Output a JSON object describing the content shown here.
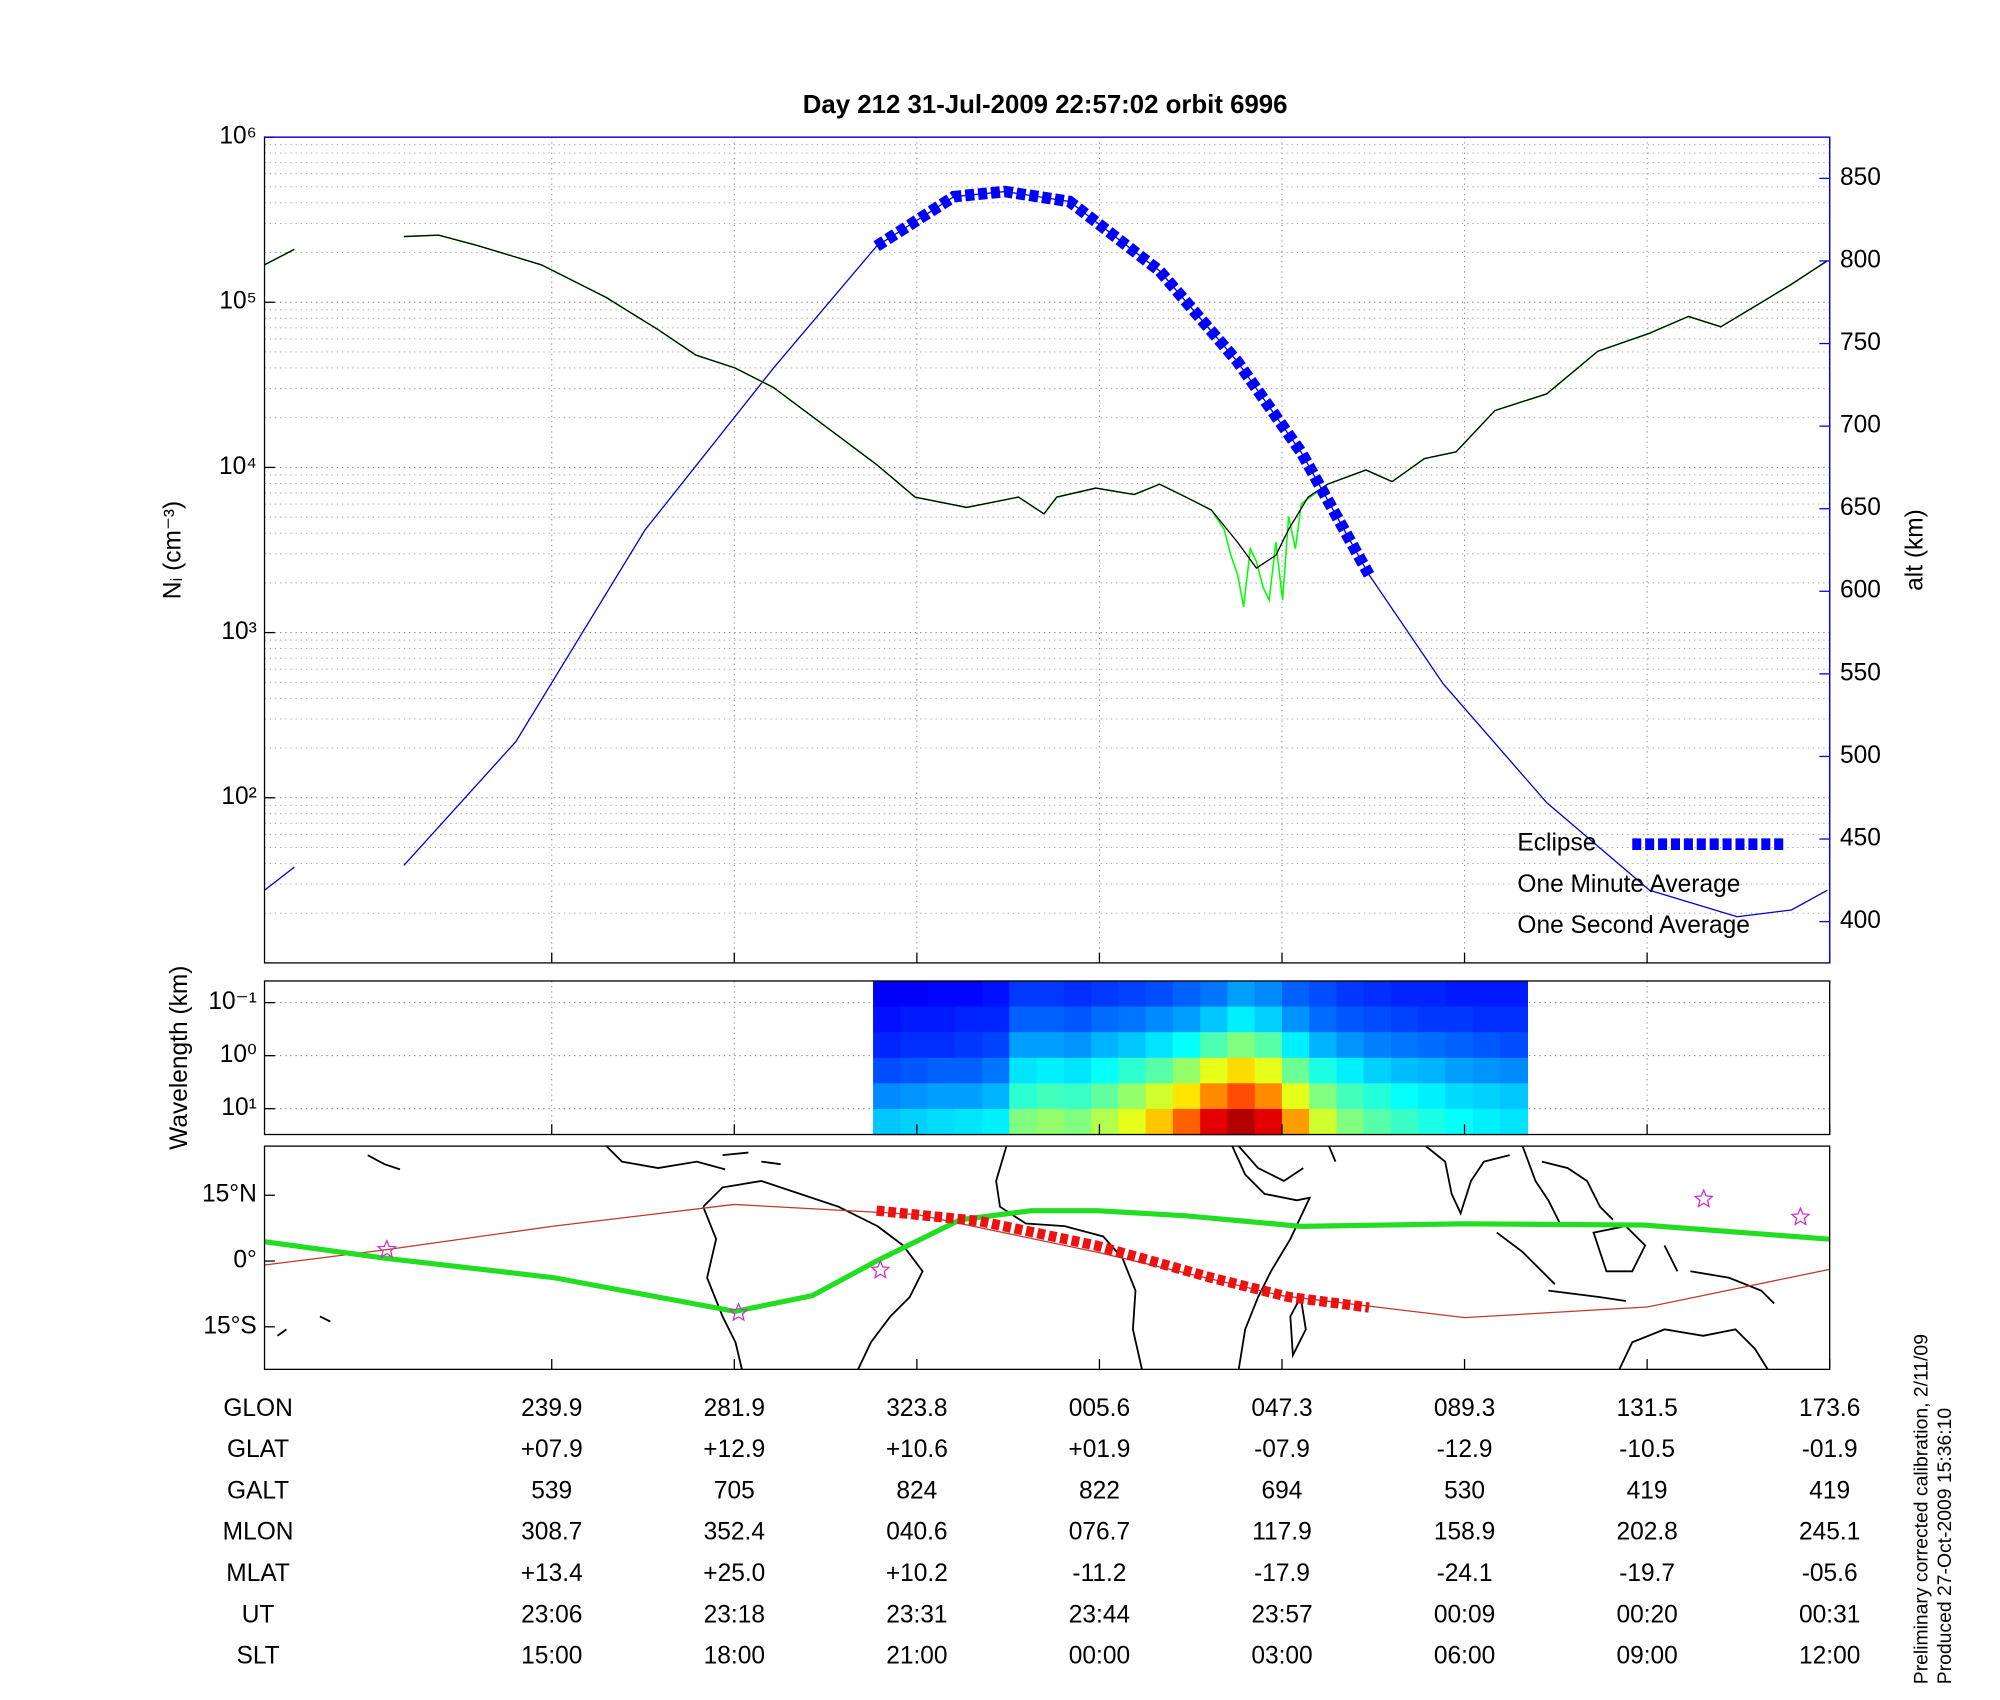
{
  "title": "Day 212  31-Jul-2009 22:57:02   orbit 6996",
  "chart_data": [
    {
      "type": "line",
      "ylabel": "Nᵢ (cm⁻³)",
      "ylog": true,
      "ylim": [
        10,
        1000000
      ],
      "yticks": [
        {
          "value": 100,
          "label": "10²"
        },
        {
          "value": 1000,
          "label": "10³"
        },
        {
          "value": 10000,
          "label": "10⁴"
        },
        {
          "value": 100000,
          "label": "10⁵"
        },
        {
          "value": 1000000,
          "label": "10⁶"
        }
      ],
      "yminor": [
        20,
        30,
        40,
        50,
        60,
        70,
        80,
        90,
        200,
        300,
        400,
        500,
        600,
        700,
        800,
        900,
        2000,
        3000,
        4000,
        5000,
        6000,
        7000,
        8000,
        9000,
        20000,
        30000,
        40000,
        50000,
        60000,
        70000,
        80000,
        90000,
        200000,
        300000,
        400000,
        500000,
        600000,
        700000,
        800000,
        900000
      ],
      "y2label": "alt (km)",
      "y2lim": [
        375,
        875
      ],
      "y2ticks": [
        400,
        450,
        500,
        550,
        600,
        650,
        700,
        750,
        800,
        850
      ],
      "y2color": "#0000ff",
      "grid": true,
      "legend": "lower right",
      "series": [
        {
          "name": "Eclipse",
          "axis": "y2",
          "color": "#0000ff",
          "width": 9,
          "dash": "7 3",
          "x": [
            20.34,
            21.61,
            22.45,
            23.51,
            24.99,
            26.27,
            27.32,
            28.43
          ],
          "values": [
            809,
            839,
            842,
            836,
            794,
            739,
            684,
            610
          ]
        },
        {
          "name": "One Minute Average",
          "color": "#000000",
          "width": 1,
          "x": [
            10.28,
            10.77,
            11.66,
            12.57,
            13.14,
            13.77,
            14.83,
            15.89,
            16.74,
            17.37,
            18.01,
            18.64,
            19.49,
            20.34,
            20.97,
            21.82,
            22.67,
            23.09,
            23.3,
            23.94,
            24.57,
            24.99,
            25.42,
            25.84,
            26.27,
            26.58,
            26.9,
            27.11,
            27.43,
            27.75,
            28.38,
            28.81,
            29.34,
            29.86,
            30.5,
            31.35,
            32.19,
            33.04,
            33.68,
            34.21,
            34.74,
            35.37,
            35.96
          ],
          "values": [
            168500,
            209000,
            null,
            250000,
            255000,
            221000,
            168500,
            107000,
            68500,
            47800,
            40000,
            30500,
            17800,
            10400,
            6610,
            5730,
            6610,
            5230,
            6610,
            7500,
            6850,
            7910,
            6610,
            5520,
            3520,
            2460,
            2940,
            4220,
            6610,
            7910,
            9650,
            8200,
            11300,
            12400,
            22100,
            27900,
            50500,
            64900,
            82000,
            71100,
            93000,
            128500,
            178000
          ]
        },
        {
          "name": "One Second Average",
          "color": "#00ff00",
          "width": 1.2,
          "x": [
            10.28,
            10.77,
            11.66,
            12.57,
            13.14,
            13.77,
            14.83,
            15.89,
            16.74,
            17.37,
            18.01,
            18.64,
            19.49,
            20.34,
            20.97,
            21.82,
            22.67,
            23.09,
            23.3,
            23.94,
            24.57,
            24.99,
            25.42,
            25.84,
            26.05,
            26.16,
            26.27,
            26.37,
            26.48,
            26.58,
            26.69,
            26.79,
            26.9,
            27.01,
            27.11,
            27.22,
            27.32,
            27.75,
            28.38,
            28.81,
            29.34,
            29.86,
            30.5,
            31.35,
            32.19,
            33.04,
            33.68,
            34.21,
            34.74,
            35.37,
            35.96
          ],
          "values": [
            168500,
            209000,
            null,
            250000,
            255000,
            221000,
            168500,
            107000,
            68500,
            47800,
            40000,
            30500,
            17800,
            10400,
            6610,
            5730,
            6610,
            5230,
            6610,
            7500,
            6850,
            7910,
            6610,
            5520,
            4220,
            2940,
            2250,
            1430,
            3220,
            2690,
            1880,
            1570,
            3520,
            1570,
            5050,
            3220,
            6040,
            7910,
            9650,
            8200,
            11300,
            12400,
            22100,
            27900,
            50500,
            64900,
            82000,
            71100,
            93000,
            128500,
            178000
          ]
        },
        {
          "axis": "y2",
          "color": "#0000cd",
          "width": 1,
          "x": [
            10.28,
            10.77,
            11.66,
            12.57,
            14.41,
            16.53,
            18.64,
            20.34,
            21.61,
            22.45,
            23.51,
            24.99,
            26.27,
            27.32,
            28.43,
            29.65,
            31.35,
            33.04,
            34.48,
            35.37,
            35.96
          ],
          "values": [
            419,
            433,
            null,
            434,
            509,
            637,
            735,
            809,
            839,
            842,
            836,
            794,
            739,
            684,
            610,
            544,
            472,
            419,
            403,
            407,
            419
          ]
        }
      ]
    },
    {
      "type": "heatmap",
      "ylabel": "Wavelength (km)",
      "ylog": true,
      "yreverse": true,
      "ylim": [
        0.039,
        30.7
      ],
      "yticks": [
        {
          "value": 0.1,
          "label": "10⁻¹"
        },
        {
          "value": 1,
          "label": "10⁰"
        },
        {
          "value": 10,
          "label": "10¹"
        }
      ],
      "grid": true,
      "colormap": "jet",
      "x_range": [
        20.28,
        31.03
      ],
      "z": [
        [
          0.12,
          0.12,
          0.13,
          0.13,
          0.14,
          0.18,
          0.18,
          0.17,
          0.18,
          0.19,
          0.2,
          0.22,
          0.24,
          0.28,
          0.26,
          0.22,
          0.2,
          0.18,
          0.17,
          0.16,
          0.16,
          0.15,
          0.15,
          0.15
        ],
        [
          0.14,
          0.15,
          0.15,
          0.16,
          0.16,
          0.22,
          0.22,
          0.21,
          0.23,
          0.24,
          0.26,
          0.28,
          0.32,
          0.36,
          0.33,
          0.27,
          0.23,
          0.21,
          0.2,
          0.19,
          0.18,
          0.18,
          0.17,
          0.17
        ],
        [
          0.16,
          0.17,
          0.17,
          0.18,
          0.19,
          0.28,
          0.28,
          0.27,
          0.3,
          0.32,
          0.35,
          0.38,
          0.45,
          0.5,
          0.46,
          0.36,
          0.3,
          0.27,
          0.25,
          0.24,
          0.23,
          0.22,
          0.21,
          0.2
        ],
        [
          0.2,
          0.21,
          0.22,
          0.22,
          0.24,
          0.35,
          0.36,
          0.35,
          0.38,
          0.42,
          0.46,
          0.52,
          0.6,
          0.66,
          0.6,
          0.48,
          0.4,
          0.36,
          0.33,
          0.31,
          0.3,
          0.28,
          0.27,
          0.26
        ],
        [
          0.26,
          0.27,
          0.28,
          0.28,
          0.3,
          0.42,
          0.44,
          0.43,
          0.47,
          0.52,
          0.58,
          0.65,
          0.74,
          0.8,
          0.74,
          0.6,
          0.5,
          0.44,
          0.41,
          0.38,
          0.36,
          0.34,
          0.33,
          0.32
        ],
        [
          0.32,
          0.33,
          0.34,
          0.35,
          0.36,
          0.5,
          0.52,
          0.5,
          0.55,
          0.6,
          0.68,
          0.78,
          0.9,
          0.95,
          0.9,
          0.72,
          0.58,
          0.5,
          0.46,
          0.43,
          0.4,
          0.38,
          0.36,
          0.35
        ]
      ]
    },
    {
      "type": "map",
      "ylim": [
        -24.7,
        26.2
      ],
      "yticks": [
        {
          "value": 15,
          "label": "15°N"
        },
        {
          "value": 0,
          "label": "0°"
        },
        {
          "value": -15,
          "label": "15°S"
        }
      ],
      "xlim": [
        10.28,
        36
      ],
      "xticks": [
        {
          "value": 15,
          "label": "15:00"
        },
        {
          "value": 18,
          "label": "18:00"
        },
        {
          "value": 21,
          "label": "21:00"
        },
        {
          "value": 24,
          "label": "00:00"
        },
        {
          "value": 27,
          "label": "03:00"
        },
        {
          "value": 30,
          "label": "06:00"
        },
        {
          "value": 33,
          "label": "09:00"
        },
        {
          "value": 36,
          "label": "12:00"
        }
      ],
      "x_label": "SLT",
      "series": [
        {
          "color": "#c0392b",
          "width": 1,
          "x": [
            10.28,
            12.29,
            15,
            18,
            21,
            24,
            27,
            30,
            33,
            36
          ],
          "values": [
            -0.9,
            2.6,
            7.9,
            12.9,
            10.6,
            1.9,
            -7.9,
            -12.9,
            -10.5,
            -1.9
          ]
        },
        {
          "color": "#22dd22",
          "width": 4,
          "x": [
            10.28,
            12.29,
            15.04,
            18.01,
            19.28,
            20.34,
            21.71,
            22.88,
            23.96,
            25.42,
            27.32,
            29.97,
            32.95,
            36
          ],
          "values": [
            4.4,
            0.6,
            -3.8,
            -11.5,
            -7.9,
            0,
            9.4,
            11.5,
            11.5,
            10.3,
            7.9,
            8.5,
            8.2,
            5.0
          ]
        },
        {
          "color": "#ee1111",
          "width": 8,
          "dash": "6 3",
          "x": [
            20.34,
            22.03,
            23.96,
            25.84,
            27.11,
            28.43
          ],
          "values": [
            11.5,
            9.1,
            3.5,
            -3.8,
            -8.2,
            -10.6
          ]
        },
        {
          "color": "#cc33cc",
          "marker": "star",
          "x": [
            12.29,
            18.07,
            20.4,
            33.93,
            35.52
          ],
          "values": [
            2.6,
            -11.8,
            -2.1,
            14.1,
            10.0
          ]
        }
      ]
    }
  ],
  "table": {
    "rows": [
      {
        "label": "GLON",
        "values": [
          "239.9",
          "281.9",
          "323.8",
          "005.6",
          "047.3",
          "089.3",
          "131.5",
          "173.6"
        ]
      },
      {
        "label": "GLAT",
        "values": [
          "+07.9",
          "+12.9",
          "+10.6",
          "+01.9",
          "-07.9",
          "-12.9",
          "-10.5",
          "-01.9"
        ]
      },
      {
        "label": "GALT",
        "values": [
          "539",
          "705",
          "824",
          "822",
          "694",
          "530",
          "419",
          "419"
        ]
      },
      {
        "label": "MLON",
        "values": [
          "308.7",
          "352.4",
          "040.6",
          "076.7",
          "117.9",
          "158.9",
          "202.8",
          "245.1"
        ]
      },
      {
        "label": "MLAT",
        "values": [
          "+13.4",
          "+25.0",
          "+10.2",
          "-11.2",
          "-17.9",
          "-24.1",
          "-19.7",
          "-05.6"
        ]
      },
      {
        "label": "UT",
        "values": [
          "23:06",
          "23:18",
          "23:31",
          "23:44",
          "23:57",
          "00:09",
          "00:20",
          "00:31"
        ]
      }
    ]
  },
  "footnote": [
    "Preliminary corrected calibration, 2/11/09",
    "Produced 27-Oct-2009 15:36:10"
  ]
}
